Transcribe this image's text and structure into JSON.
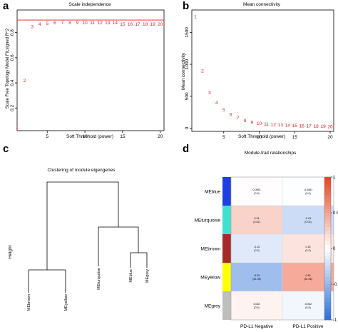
{
  "panels": {
    "a": {
      "label": "a"
    },
    "b": {
      "label": "b"
    },
    "c": {
      "label": "c"
    },
    "d": {
      "label": "d"
    }
  },
  "chart_data": [
    {
      "type": "scatter",
      "panel": "a",
      "title": "Scale independence",
      "xlabel": "Soft Threshold (power)",
      "ylabel": "Scale Free Topology Model Fit,signed R^2",
      "x": [
        1,
        2,
        3,
        4,
        5,
        6,
        7,
        8,
        9,
        10,
        11,
        12,
        13,
        14,
        15,
        16,
        17,
        18,
        19,
        20
      ],
      "y": [
        0.05,
        0.42,
        0.85,
        0.87,
        0.875,
        0.88,
        0.88,
        0.88,
        0.88,
        0.88,
        0.88,
        0.88,
        0.88,
        0.88,
        0.87,
        0.87,
        0.87,
        0.87,
        0.87,
        0.87
      ],
      "point_labels": [
        "1",
        "2",
        "3",
        "4",
        "5",
        "6",
        "7",
        "8",
        "9",
        "10",
        "11",
        "12",
        "13",
        "14",
        "15",
        "16",
        "17",
        "18",
        "19",
        "20"
      ],
      "xlim": [
        1,
        20.5
      ],
      "ylim": [
        0.02,
        0.98
      ],
      "xticks": [
        5,
        10,
        15,
        20
      ],
      "yticks": [
        0.2,
        0.4,
        0.6,
        0.8
      ],
      "hline": 0.9,
      "marker_color": "#e8191a",
      "hline_color": "#e8191a"
    },
    {
      "type": "scatter",
      "panel": "b",
      "title": "Mean connectivity",
      "xlabel": "Soft Threshold (power)",
      "ylabel": "Mean connectivity",
      "x": [
        1,
        2,
        3,
        4,
        5,
        6,
        7,
        8,
        9,
        10,
        11,
        12,
        13,
        14,
        15,
        16,
        17,
        18,
        19,
        20
      ],
      "y": [
        1750,
        900,
        560,
        400,
        290,
        220,
        170,
        125,
        95,
        80,
        70,
        60,
        55,
        50,
        45,
        40,
        38,
        35,
        33,
        30
      ],
      "point_labels": [
        "1",
        "2",
        "3",
        "4",
        "5",
        "6",
        "7",
        "8",
        "9",
        "10",
        "11",
        "12",
        "13",
        "14",
        "15",
        "16",
        "17",
        "18",
        "19",
        "20"
      ],
      "xlim": [
        0.5,
        20.5
      ],
      "ylim": [
        -50,
        1850
      ],
      "xticks": [
        5,
        10,
        15,
        20
      ],
      "yticks": [
        0,
        500,
        1000,
        1500
      ],
      "marker_color": "#e8191a"
    },
    {
      "type": "dendrogram",
      "panel": "c",
      "title": "Clustering of module eigengenes",
      "ylabel": "Height",
      "leaves": [
        "MEbrown",
        "MEyellow",
        "MEturquoise",
        "MEblue",
        "MEgrey"
      ]
    },
    {
      "type": "heatmap",
      "panel": "d",
      "title": "Module-trait relationships",
      "rows": [
        "MEblue",
        "MEturquoise",
        "MEbrown",
        "MEyellow",
        "MEgrey"
      ],
      "row_colors": [
        "#1f3fe0",
        "#40e0d0",
        "#a52a2a",
        "#ffff00",
        "#bebebe"
      ],
      "columns": [
        "PD-L1 Negative",
        "PD-L1 Positive"
      ],
      "values": [
        [
          0.0081,
          -0.0081
        ],
        [
          0.24,
          -0.24
        ],
        [
          -0.15,
          0.15
        ],
        [
          -0.45,
          0.45
        ],
        [
          0.062,
          -0.062
        ]
      ],
      "cell_text": [
        [
          "0.0081\n(0.9)",
          "-0.0081\n(0.9)"
        ],
        [
          "0.24\n(0.02)",
          "-0.24\n(0.02)"
        ],
        [
          "-0.15\n(0.2)",
          "0.15\n(0.2)"
        ],
        [
          "-0.45\n(3e-06)",
          "0.45\n(3e-06)"
        ],
        [
          "0.062\n(0.5)",
          "-0.062\n(0.5)"
        ]
      ],
      "colorbar_ticks": [
        1,
        0.5,
        0,
        -0.5,
        -1
      ],
      "colorbar_tick_labels": [
        "1",
        "0.5",
        "0",
        "-0.5",
        "-1"
      ],
      "colorscale": {
        "low": "#2a6fd8",
        "mid": "#ffffff",
        "high": "#e8431f"
      }
    }
  ]
}
